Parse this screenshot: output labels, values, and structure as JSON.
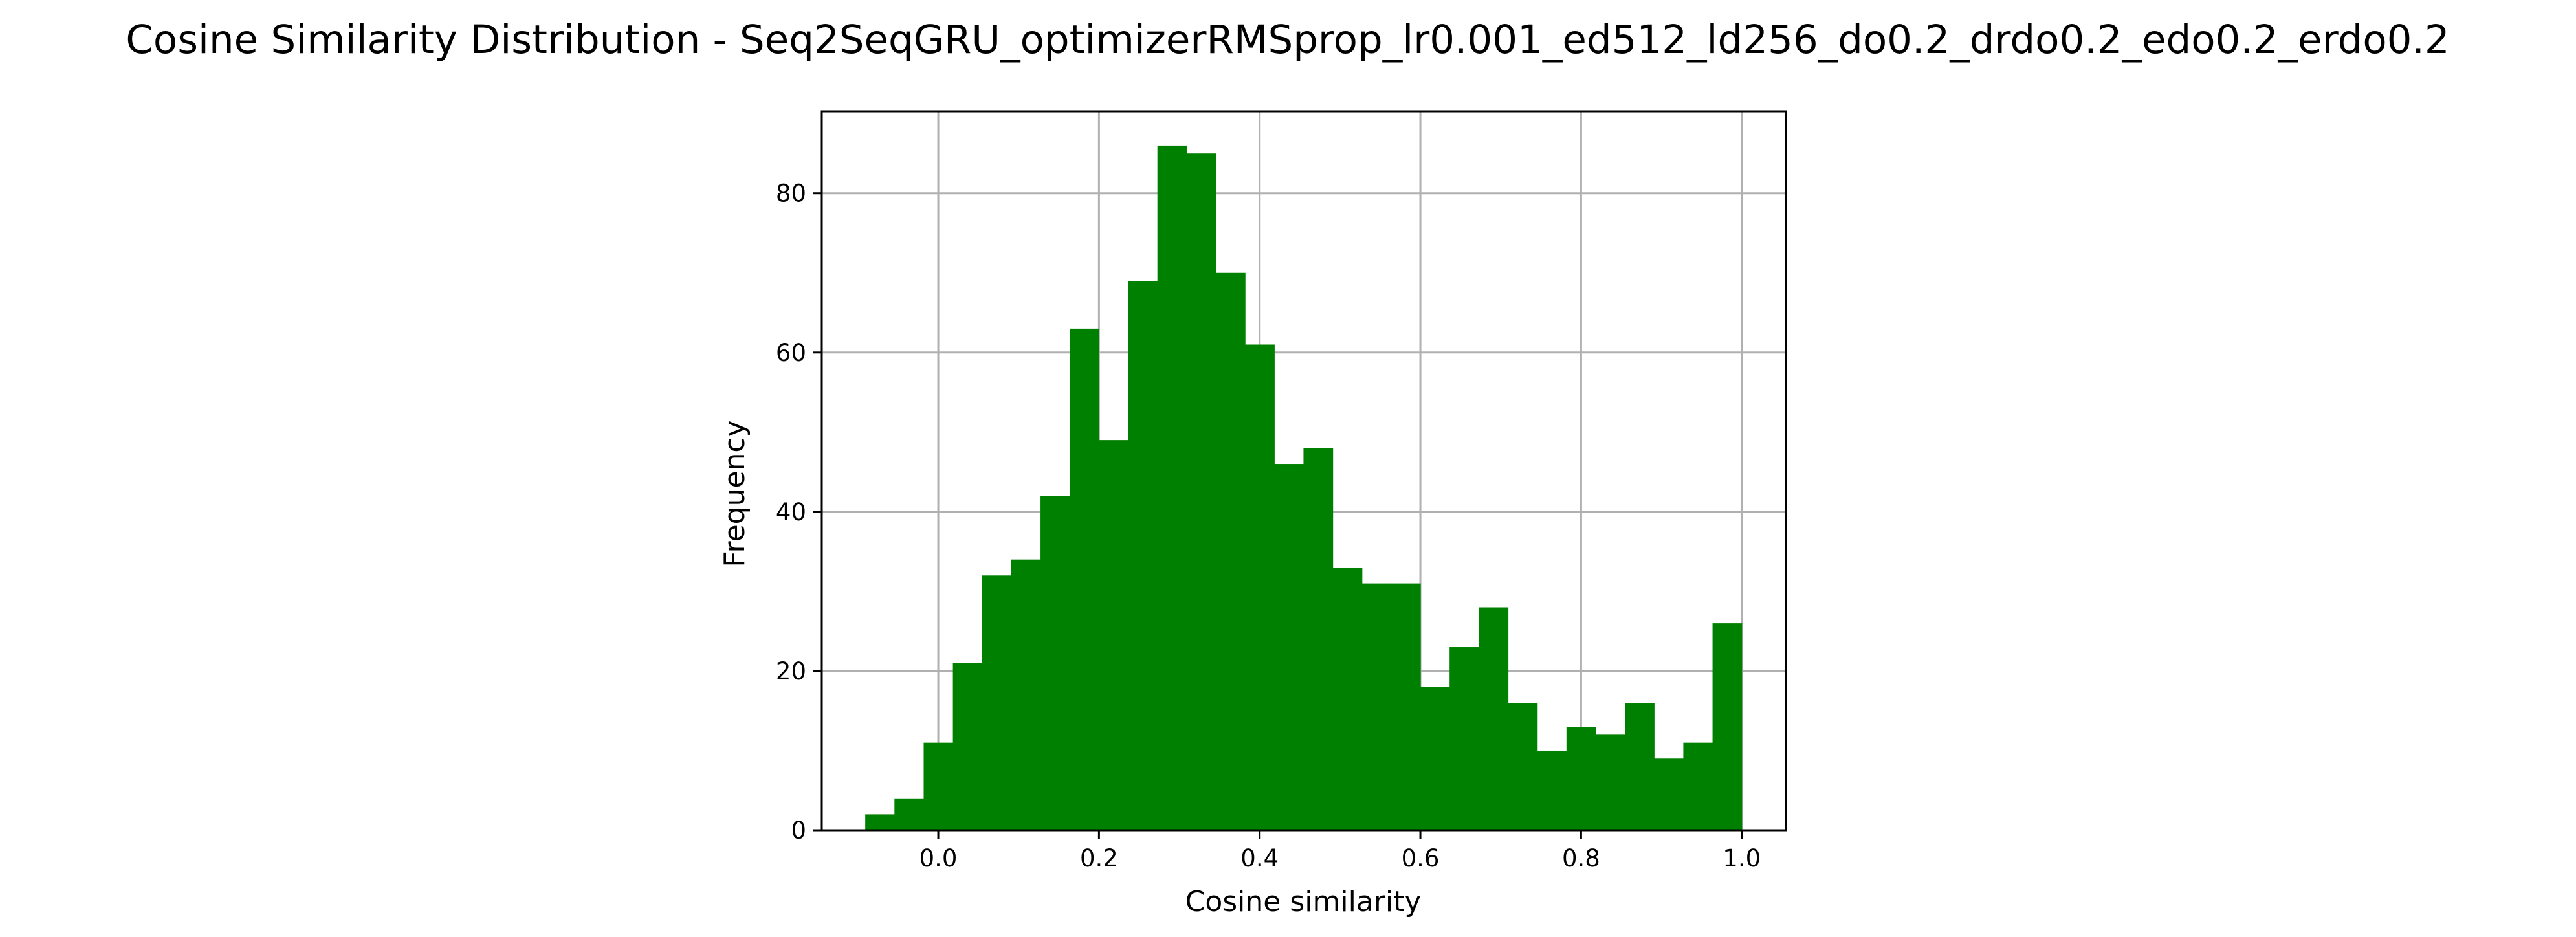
{
  "chart_data": {
    "type": "bar",
    "title": "Cosine Similarity Distribution - Seq2SeqGRU_optimizerRMSprop_lr0.001_ed512_ld256_do0.2_drdo0.2_edo0.2_erdo0.2",
    "xlabel": "Cosine similarity",
    "ylabel": "Frequency",
    "xlim": [
      -0.145,
      1.055
    ],
    "ylim": [
      0,
      90.3
    ],
    "xticks": [
      "0.0",
      "0.2",
      "0.4",
      "0.6",
      "0.8",
      "1.0"
    ],
    "yticks": [
      "0",
      "20",
      "40",
      "60",
      "80"
    ],
    "grid": true,
    "bar_color": "#008000",
    "bins": {
      "start": -0.0909,
      "end": 1.0,
      "count": 30,
      "values": [
        2,
        4,
        11,
        21,
        32,
        34,
        42,
        63,
        49,
        69,
        86,
        85,
        70,
        61,
        46,
        48,
        33,
        31,
        31,
        18,
        23,
        28,
        16,
        10,
        13,
        12,
        16,
        9,
        11,
        26
      ]
    }
  }
}
